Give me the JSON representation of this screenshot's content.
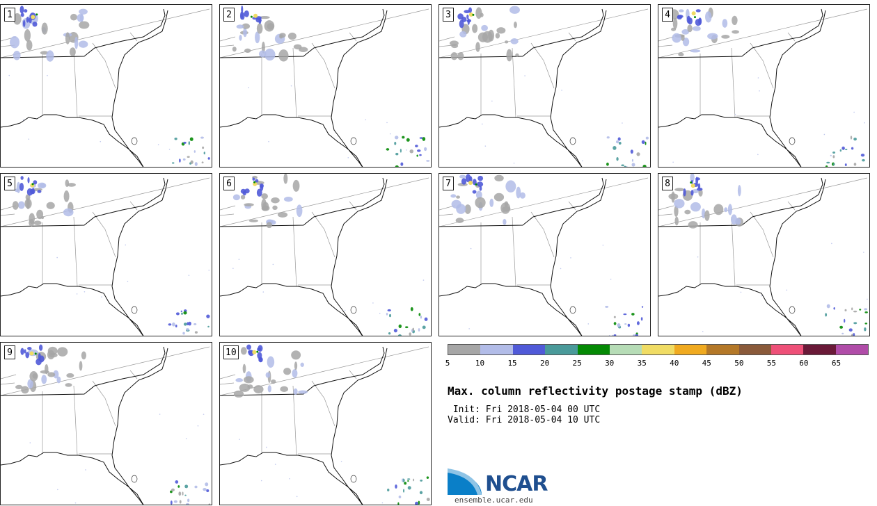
{
  "panels": [
    {
      "label": "1"
    },
    {
      "label": "2"
    },
    {
      "label": "3"
    },
    {
      "label": "4"
    },
    {
      "label": "5"
    },
    {
      "label": "6"
    },
    {
      "label": "7"
    },
    {
      "label": "8"
    },
    {
      "label": "9"
    },
    {
      "label": "10"
    }
  ],
  "colorbar": {
    "colors": [
      "#a6a6a6",
      "#b2bce8",
      "#505ad8",
      "#4a9a9a",
      "#058a05",
      "#b6dcb6",
      "#f0dc64",
      "#f0aa20",
      "#b47828",
      "#8a5a3a",
      "#ee5078",
      "#6a1a38",
      "#b04ca8"
    ],
    "ticks": [
      "5",
      "10",
      "15",
      "20",
      "25",
      "30",
      "35",
      "40",
      "45",
      "50",
      "55",
      "60",
      "65"
    ]
  },
  "title": "Max. column reflectivity postage stamp (dBZ)",
  "init": " Init: Fri 2018-05-04 00 UTC",
  "valid": "Valid: Fri 2018-05-04 10 UTC",
  "logo": {
    "text": "NCAR",
    "url": "ensemble.ucar.edu"
  }
}
